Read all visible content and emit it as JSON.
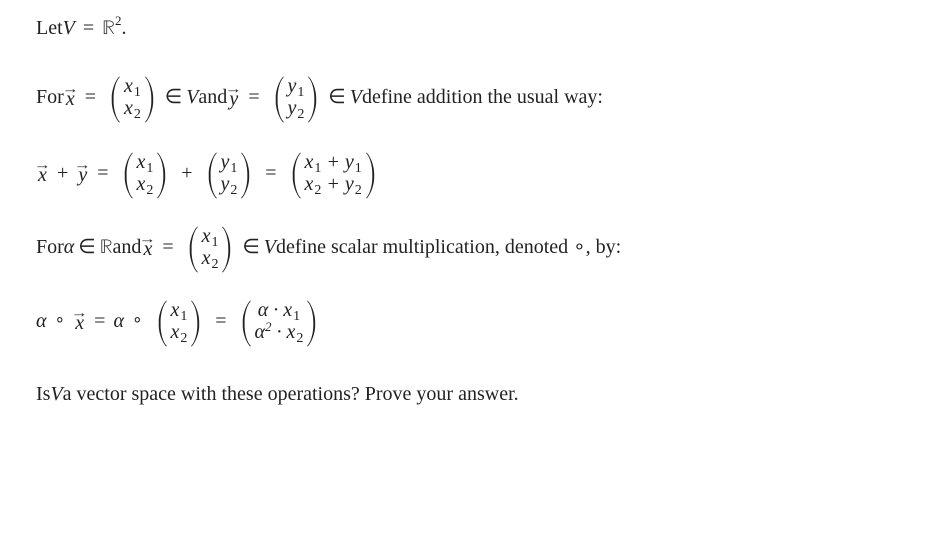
{
  "colors": {
    "text": "#222222",
    "background": "#ffffff"
  },
  "font": {
    "family": "Times New Roman, serif",
    "size_pt": 20
  },
  "glyphs": {
    "in": "∈",
    "bbR": "ℝ",
    "dot": "·",
    "ring": "∘",
    "arrow": "→",
    "alpha": "α"
  },
  "l1": {
    "let": "Let ",
    "V": "V",
    "eq": " = ",
    "R": "ℝ",
    "sq": "2",
    "dot": "."
  },
  "l2": {
    "for": "For ",
    "x": "x",
    "eq": " = ",
    "c1a": "x",
    "c1as": "1",
    "c1b": "x",
    "c1bs": "2",
    "in1": " ∈ ",
    "V1": "V",
    "and": " and ",
    "y": "y",
    "c2a": "y",
    "c2as": "1",
    "c2b": "y",
    "c2bs": "2",
    "in2": " ∈ ",
    "V2": "V",
    "tail": " define addition the usual way:"
  },
  "l3": {
    "x": "x",
    "plus": " + ",
    "y": "y",
    "eq": " = ",
    "Aa": "x",
    "Aas": "1",
    "Ab": "x",
    "Abs": "2",
    "mid": " + ",
    "Ba": "y",
    "Bas": "1",
    "Bb": "y",
    "Bbs": "2",
    "eq2": " = ",
    "row1a": "x",
    "row1as": "1",
    "row1p": " + ",
    "row1b": "y",
    "row1bs": "1",
    "row2a": "x",
    "row2as": "2",
    "row2p": " + ",
    "row2b": "y",
    "row2bs": "2"
  },
  "l4": {
    "for": "For ",
    "alpha": "α",
    "in": " ∈ ",
    "R": "ℝ",
    "and": " and ",
    "x": "x",
    "eq": " = ",
    "c1a": "x",
    "c1as": "1",
    "c1b": "x",
    "c1bs": "2",
    "in2": " ∈ ",
    "V": "V",
    "tail": " define scalar multiplication, denoted ∘, by:"
  },
  "l5": {
    "alpha1": "α",
    "ring1": " ∘ ",
    "x": "x",
    "eq": " = ",
    "alpha2": "α",
    "ring2": " ∘ ",
    "c1a": "x",
    "c1as": "1",
    "c1b": "x",
    "c1bs": "2",
    "eq2": " = ",
    "r1a": "α",
    "r1d": " · ",
    "r1x": "x",
    "r1xs": "1",
    "r2a": "α",
    "r2sup": "2",
    "r2d": " · ",
    "r2x": "x",
    "r2xs": "2"
  },
  "l6": {
    "pre": "Is ",
    "V": "V",
    "post": " a vector space with these operations? Prove your answer."
  }
}
